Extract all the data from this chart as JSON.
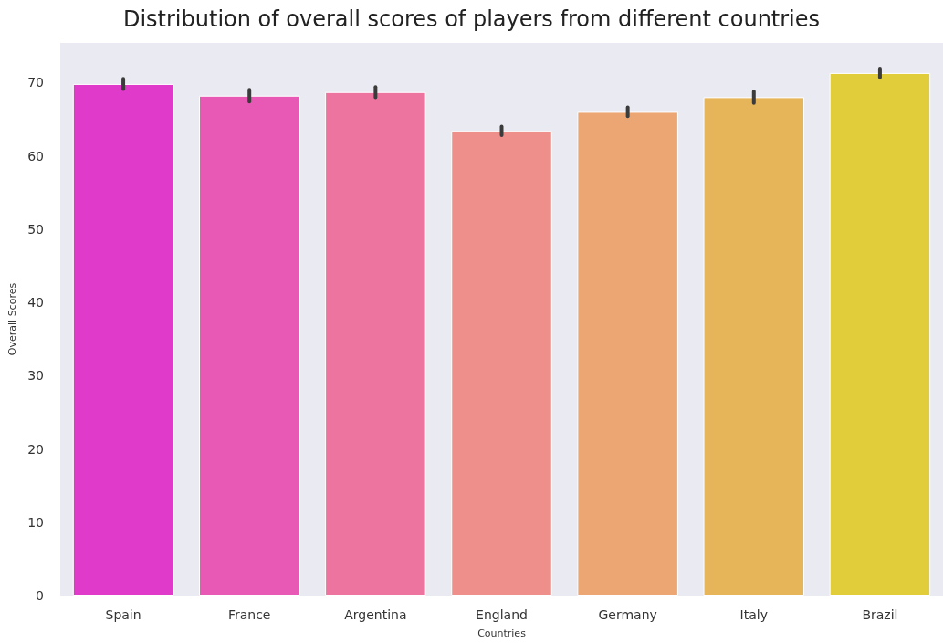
{
  "chart_data": {
    "type": "bar",
    "title": "Distribution of overall scores of players from different countries",
    "xlabel": "Countries",
    "ylabel": "Overall Scores",
    "categories": [
      "Spain",
      "France",
      "Argentina",
      "England",
      "Germany",
      "Italy",
      "Brazil"
    ],
    "values": [
      69.8,
      68.2,
      68.7,
      63.4,
      66.0,
      68.0,
      71.3
    ],
    "errors": [
      0.7,
      0.8,
      0.7,
      0.6,
      0.6,
      0.8,
      0.6
    ],
    "colors": [
      "#e03acb",
      "#e759b4",
      "#ec749f",
      "#ef8f8b",
      "#eba674",
      "#e6b55a",
      "#e1cd3a"
    ],
    "ylim": [
      0,
      75.4
    ],
    "yticks": [
      0,
      10,
      20,
      30,
      40,
      50,
      60,
      70
    ],
    "grid": false
  }
}
